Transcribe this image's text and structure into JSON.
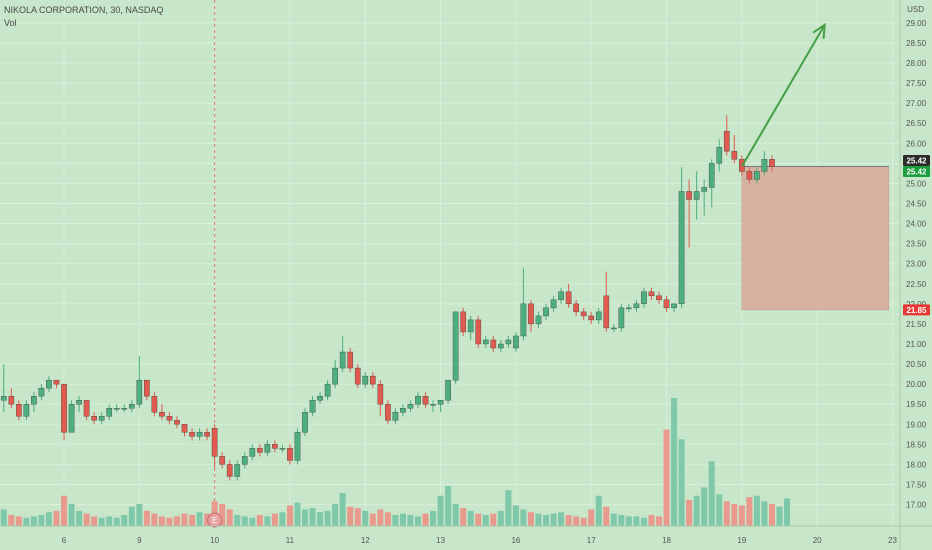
{
  "header": {
    "title": "NIKOLA CORPORATION, 30, NASDAQ",
    "volume_label": "Vol"
  },
  "colors": {
    "background": "#c8e6c9",
    "up": "#4caf7d",
    "down": "#e05a4e",
    "grid": "#d8efd9",
    "axis_text": "#555555",
    "arrow": "#43a047",
    "risk_zone": "#d8a89a",
    "entry_badge": "#e8a0a0"
  },
  "chart_data": {
    "type": "candlestick",
    "currency": "USD",
    "y_axis_ticks": [
      "17.00",
      "17.50",
      "18.00",
      "18.50",
      "19.00",
      "19.50",
      "20.00",
      "20.50",
      "21.00",
      "21.50",
      "22.00",
      "22.50",
      "23.00",
      "23.50",
      "24.00",
      "24.50",
      "25.00",
      "25.50",
      "26.00",
      "26.50",
      "27.00",
      "27.50",
      "28.00",
      "28.50",
      "29.00"
    ],
    "ylim": [
      16.8,
      29.25
    ],
    "x_axis_ticks": [
      {
        "label": "6",
        "i": 8
      },
      {
        "label": "9",
        "i": 18
      },
      {
        "label": "10",
        "i": 28
      },
      {
        "label": "11",
        "i": 38
      },
      {
        "label": "12",
        "i": 48
      },
      {
        "label": "13",
        "i": 58
      },
      {
        "label": "16",
        "i": 68
      },
      {
        "label": "17",
        "i": 78
      },
      {
        "label": "18",
        "i": 88
      },
      {
        "label": "19",
        "i": 98
      },
      {
        "label": "20",
        "i": 108
      },
      {
        "label": "23",
        "i": 118
      }
    ],
    "x_range": [
      -0.5,
      119
    ],
    "session_marker_i": 28,
    "earnings_marker": {
      "label": "E",
      "i": 28
    },
    "price_labels": [
      {
        "label": "25.42",
        "value": 25.42,
        "style": "dark"
      },
      {
        "label": "25.42",
        "value": 25.42,
        "style": "green"
      },
      {
        "label": "21.85",
        "value": 21.85,
        "style": "red"
      }
    ],
    "candles": [
      {
        "o": 19.6,
        "h": 20.5,
        "l": 19.3,
        "c": 19.7
      },
      {
        "o": 19.7,
        "h": 19.9,
        "l": 19.4,
        "c": 19.5
      },
      {
        "o": 19.5,
        "h": 19.6,
        "l": 19.1,
        "c": 19.2
      },
      {
        "o": 19.2,
        "h": 19.6,
        "l": 19.1,
        "c": 19.5
      },
      {
        "o": 19.5,
        "h": 19.8,
        "l": 19.3,
        "c": 19.7
      },
      {
        "o": 19.7,
        "h": 20.0,
        "l": 19.6,
        "c": 19.9
      },
      {
        "o": 19.9,
        "h": 20.2,
        "l": 19.8,
        "c": 20.1
      },
      {
        "o": 20.1,
        "h": 20.1,
        "l": 19.9,
        "c": 20.0
      },
      {
        "o": 20.0,
        "h": 20.0,
        "l": 18.6,
        "c": 18.8
      },
      {
        "o": 18.8,
        "h": 19.6,
        "l": 18.8,
        "c": 19.5
      },
      {
        "o": 19.5,
        "h": 19.7,
        "l": 19.3,
        "c": 19.6
      },
      {
        "o": 19.6,
        "h": 19.6,
        "l": 19.1,
        "c": 19.2
      },
      {
        "o": 19.2,
        "h": 19.3,
        "l": 19.0,
        "c": 19.1
      },
      {
        "o": 19.1,
        "h": 19.3,
        "l": 19.0,
        "c": 19.2
      },
      {
        "o": 19.2,
        "h": 19.5,
        "l": 19.1,
        "c": 19.4
      },
      {
        "o": 19.4,
        "h": 19.5,
        "l": 19.3,
        "c": 19.4
      },
      {
        "o": 19.4,
        "h": 19.5,
        "l": 19.3,
        "c": 19.4
      },
      {
        "o": 19.4,
        "h": 19.6,
        "l": 19.3,
        "c": 19.5
      },
      {
        "o": 19.5,
        "h": 20.7,
        "l": 19.4,
        "c": 20.1
      },
      {
        "o": 20.1,
        "h": 20.1,
        "l": 19.6,
        "c": 19.7
      },
      {
        "o": 19.7,
        "h": 19.8,
        "l": 19.2,
        "c": 19.3
      },
      {
        "o": 19.3,
        "h": 19.5,
        "l": 19.1,
        "c": 19.2
      },
      {
        "o": 19.2,
        "h": 19.3,
        "l": 19.0,
        "c": 19.1
      },
      {
        "o": 19.1,
        "h": 19.2,
        "l": 18.9,
        "c": 19.0
      },
      {
        "o": 19.0,
        "h": 19.0,
        "l": 18.7,
        "c": 18.8
      },
      {
        "o": 18.8,
        "h": 18.9,
        "l": 18.6,
        "c": 18.7
      },
      {
        "o": 18.7,
        "h": 18.9,
        "l": 18.6,
        "c": 18.8
      },
      {
        "o": 18.8,
        "h": 18.9,
        "l": 18.6,
        "c": 18.7
      },
      {
        "o": 18.9,
        "h": 19.0,
        "l": 17.9,
        "c": 18.2
      },
      {
        "o": 18.2,
        "h": 18.3,
        "l": 17.9,
        "c": 18.0
      },
      {
        "o": 18.0,
        "h": 18.1,
        "l": 17.6,
        "c": 17.7
      },
      {
        "o": 17.7,
        "h": 18.1,
        "l": 17.6,
        "c": 18.0
      },
      {
        "o": 18.0,
        "h": 18.3,
        "l": 17.9,
        "c": 18.2
      },
      {
        "o": 18.2,
        "h": 18.5,
        "l": 18.1,
        "c": 18.4
      },
      {
        "o": 18.4,
        "h": 18.5,
        "l": 18.2,
        "c": 18.3
      },
      {
        "o": 18.3,
        "h": 18.6,
        "l": 18.2,
        "c": 18.5
      },
      {
        "o": 18.5,
        "h": 18.6,
        "l": 18.3,
        "c": 18.4
      },
      {
        "o": 18.4,
        "h": 18.5,
        "l": 18.3,
        "c": 18.4
      },
      {
        "o": 18.4,
        "h": 18.5,
        "l": 18.0,
        "c": 18.1
      },
      {
        "o": 18.1,
        "h": 18.9,
        "l": 18.0,
        "c": 18.8
      },
      {
        "o": 18.8,
        "h": 19.4,
        "l": 18.7,
        "c": 19.3
      },
      {
        "o": 19.3,
        "h": 19.7,
        "l": 19.2,
        "c": 19.6
      },
      {
        "o": 19.6,
        "h": 19.8,
        "l": 19.5,
        "c": 19.7
      },
      {
        "o": 19.7,
        "h": 20.1,
        "l": 19.6,
        "c": 20.0
      },
      {
        "o": 20.0,
        "h": 20.6,
        "l": 19.9,
        "c": 20.4
      },
      {
        "o": 20.4,
        "h": 21.2,
        "l": 20.3,
        "c": 20.8
      },
      {
        "o": 20.8,
        "h": 20.9,
        "l": 20.3,
        "c": 20.4
      },
      {
        "o": 20.4,
        "h": 20.5,
        "l": 19.9,
        "c": 20.0
      },
      {
        "o": 20.0,
        "h": 20.3,
        "l": 19.9,
        "c": 20.2
      },
      {
        "o": 20.2,
        "h": 20.3,
        "l": 19.9,
        "c": 20.0
      },
      {
        "o": 20.0,
        "h": 20.1,
        "l": 19.2,
        "c": 19.5
      },
      {
        "o": 19.5,
        "h": 19.6,
        "l": 19.0,
        "c": 19.1
      },
      {
        "o": 19.1,
        "h": 19.4,
        "l": 19.0,
        "c": 19.3
      },
      {
        "o": 19.3,
        "h": 19.5,
        "l": 19.2,
        "c": 19.4
      },
      {
        "o": 19.4,
        "h": 19.6,
        "l": 19.3,
        "c": 19.5
      },
      {
        "o": 19.5,
        "h": 19.8,
        "l": 19.4,
        "c": 19.7
      },
      {
        "o": 19.7,
        "h": 19.8,
        "l": 19.4,
        "c": 19.5
      },
      {
        "o": 19.5,
        "h": 19.6,
        "l": 19.3,
        "c": 19.5
      },
      {
        "o": 19.5,
        "h": 19.6,
        "l": 19.3,
        "c": 19.6
      },
      {
        "o": 19.6,
        "h": 20.1,
        "l": 19.5,
        "c": 20.1
      },
      {
        "o": 20.1,
        "h": 21.8,
        "l": 20.0,
        "c": 21.8
      },
      {
        "o": 21.8,
        "h": 21.9,
        "l": 21.2,
        "c": 21.3
      },
      {
        "o": 21.3,
        "h": 21.7,
        "l": 21.1,
        "c": 21.6
      },
      {
        "o": 21.6,
        "h": 21.7,
        "l": 20.9,
        "c": 21.0
      },
      {
        "o": 21.0,
        "h": 21.2,
        "l": 20.9,
        "c": 21.1
      },
      {
        "o": 21.1,
        "h": 21.2,
        "l": 20.8,
        "c": 20.9
      },
      {
        "o": 20.9,
        "h": 21.1,
        "l": 20.8,
        "c": 21.0
      },
      {
        "o": 21.0,
        "h": 21.2,
        "l": 20.9,
        "c": 21.1
      },
      {
        "o": 20.9,
        "h": 21.3,
        "l": 20.8,
        "c": 21.2
      },
      {
        "o": 21.2,
        "h": 22.9,
        "l": 21.1,
        "c": 22.0
      },
      {
        "o": 22.0,
        "h": 22.1,
        "l": 21.3,
        "c": 21.5
      },
      {
        "o": 21.5,
        "h": 21.8,
        "l": 21.4,
        "c": 21.7
      },
      {
        "o": 21.7,
        "h": 22.0,
        "l": 21.6,
        "c": 21.9
      },
      {
        "o": 21.9,
        "h": 22.2,
        "l": 21.8,
        "c": 22.1
      },
      {
        "o": 22.1,
        "h": 22.4,
        "l": 22.0,
        "c": 22.3
      },
      {
        "o": 22.3,
        "h": 22.5,
        "l": 21.9,
        "c": 22.0
      },
      {
        "o": 22.0,
        "h": 22.1,
        "l": 21.7,
        "c": 21.8
      },
      {
        "o": 21.8,
        "h": 21.9,
        "l": 21.6,
        "c": 21.7
      },
      {
        "o": 21.7,
        "h": 21.8,
        "l": 21.5,
        "c": 21.6
      },
      {
        "o": 21.6,
        "h": 21.9,
        "l": 21.5,
        "c": 21.8
      },
      {
        "o": 22.2,
        "h": 22.8,
        "l": 21.3,
        "c": 21.4
      },
      {
        "o": 21.4,
        "h": 21.5,
        "l": 21.3,
        "c": 21.4
      },
      {
        "o": 21.4,
        "h": 22.0,
        "l": 21.3,
        "c": 21.9
      },
      {
        "o": 21.9,
        "h": 22.0,
        "l": 21.8,
        "c": 21.9
      },
      {
        "o": 21.9,
        "h": 22.1,
        "l": 21.8,
        "c": 22.0
      },
      {
        "o": 22.0,
        "h": 22.4,
        "l": 21.9,
        "c": 22.3
      },
      {
        "o": 22.3,
        "h": 22.4,
        "l": 22.1,
        "c": 22.2
      },
      {
        "o": 22.2,
        "h": 22.3,
        "l": 22.0,
        "c": 22.1
      },
      {
        "o": 22.1,
        "h": 22.2,
        "l": 21.8,
        "c": 21.9
      },
      {
        "o": 21.9,
        "h": 22.0,
        "l": 21.8,
        "c": 22.0
      },
      {
        "o": 22.0,
        "h": 25.4,
        "l": 21.9,
        "c": 24.8
      },
      {
        "o": 24.8,
        "h": 25.1,
        "l": 23.4,
        "c": 24.6
      },
      {
        "o": 24.6,
        "h": 25.3,
        "l": 24.1,
        "c": 24.8
      },
      {
        "o": 24.8,
        "h": 25.1,
        "l": 24.2,
        "c": 24.9
      },
      {
        "o": 24.9,
        "h": 25.6,
        "l": 24.4,
        "c": 25.5
      },
      {
        "o": 25.5,
        "h": 26.1,
        "l": 25.3,
        "c": 25.9
      },
      {
        "o": 26.3,
        "h": 26.7,
        "l": 25.7,
        "c": 25.8
      },
      {
        "o": 25.8,
        "h": 26.2,
        "l": 25.5,
        "c": 25.6
      },
      {
        "o": 25.6,
        "h": 25.7,
        "l": 25.2,
        "c": 25.3
      },
      {
        "o": 25.3,
        "h": 25.4,
        "l": 25.0,
        "c": 25.1
      },
      {
        "o": 25.1,
        "h": 25.4,
        "l": 25.0,
        "c": 25.3
      },
      {
        "o": 25.3,
        "h": 25.8,
        "l": 25.2,
        "c": 25.6
      },
      {
        "o": 25.6,
        "h": 25.7,
        "l": 25.3,
        "c": 25.42
      }
    ],
    "volumes": [
      1.2,
      0.8,
      0.7,
      0.6,
      0.7,
      0.8,
      1.0,
      1.1,
      2.2,
      1.6,
      1.1,
      0.9,
      0.7,
      0.6,
      0.7,
      0.6,
      0.8,
      1.4,
      1.6,
      1.1,
      0.9,
      0.7,
      0.6,
      0.7,
      0.9,
      0.8,
      1.0,
      0.9,
      1.8,
      1.6,
      1.2,
      0.8,
      0.7,
      0.6,
      0.8,
      0.7,
      0.9,
      1.0,
      1.5,
      1.7,
      1.2,
      1.3,
      1.0,
      1.1,
      1.6,
      2.4,
      1.4,
      1.3,
      1.1,
      0.9,
      1.2,
      1.0,
      0.8,
      0.9,
      0.8,
      0.7,
      0.9,
      1.1,
      2.2,
      2.9,
      1.6,
      1.3,
      1.1,
      0.9,
      0.8,
      0.9,
      1.1,
      2.6,
      1.5,
      1.2,
      1.0,
      0.9,
      0.8,
      0.9,
      1.0,
      0.8,
      0.7,
      0.6,
      1.2,
      2.2,
      1.4,
      0.9,
      0.8,
      0.7,
      0.7,
      0.6,
      0.8,
      0.7,
      7.0,
      9.3,
      6.3,
      1.9,
      2.2,
      2.8,
      4.7,
      2.3,
      1.8,
      1.6,
      1.5,
      2.1,
      2.2,
      1.8,
      1.6,
      1.4,
      2.0
    ],
    "projection": {
      "entry_i": 98,
      "entry_price": 25.42,
      "stop_price": 21.85,
      "zone_end_i": 117.5,
      "arrow_to_i": 109,
      "arrow_to_price": 28.95
    }
  }
}
